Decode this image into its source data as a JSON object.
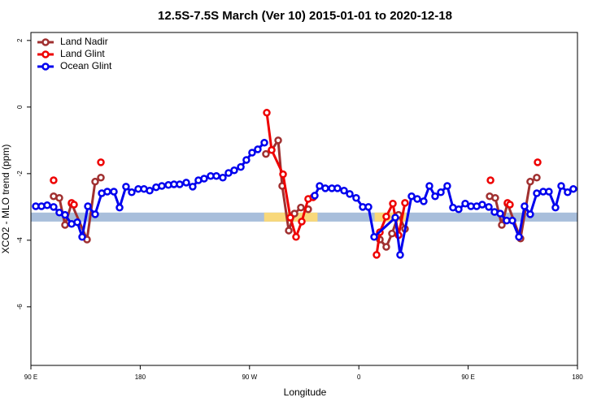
{
  "chart_data": {
    "type": "line",
    "title": "12.5S-7.5S March (Ver 10)   2015-01-01 to 2020-12-18",
    "x_label": "Longitude",
    "y_label": "XCO2 - MLO trend (ppm)",
    "xlim": [
      90,
      540
    ],
    "ylim": [
      -7.76,
      2.24
    ],
    "xticks": [
      {
        "value": 90,
        "label": "90 E"
      },
      180,
      {
        "value": 270,
        "label": "90 W"
      },
      {
        "value": 360,
        "label": "0"
      },
      {
        "value": 450,
        "label": "90 E"
      },
      {
        "value": 540,
        "label": "180"
      }
    ],
    "yticks": [
      -6,
      -4,
      -2,
      0,
      2
    ],
    "legend": "top-left",
    "band": {
      "range": [
        -3.44,
        -3.17
      ],
      "color": "#a8bedb",
      "land_color": "#f8d87a",
      "land_ranges": [
        [
          282,
          326
        ],
        [
          373,
          399
        ]
      ]
    },
    "series": [
      {
        "name": "Land Nadir",
        "color": "#a03030",
        "x": [
          108.7,
          113.4,
          118.1,
          123.5,
          136.2,
          142.9,
          147.6,
          null,
          283.5,
          288.2,
          293.6,
          296.9,
          302.3,
          307.0,
          312.3,
          318.3,
          null,
          377.3,
          382.6,
          387.3,
          392.7,
          398.0,
          null,
          467.7,
          472.3,
          477.7,
          482.4,
          493.1,
          501.1,
          506.5
        ],
        "values": [
          -2.68,
          -2.73,
          -3.54,
          -2.9,
          -3.98,
          -2.24,
          -2.12,
          null,
          -1.41,
          -1.29,
          -1.0,
          -2.37,
          -3.71,
          -3.2,
          -3.02,
          -3.07,
          null,
          -3.98,
          -4.2,
          -3.8,
          -3.24,
          -3.66,
          null,
          -2.68,
          -2.73,
          -3.54,
          -2.9,
          -3.95,
          -2.24,
          -2.12
        ]
      },
      {
        "name": "Land Glint",
        "color": "#ee0000",
        "x": [
          108.7,
          null,
          123.5,
          125.5,
          null,
          147.6,
          null,
          284.2,
          288.2,
          297.6,
          303.6,
          308.3,
          313.0,
          318.3,
          322.4,
          null,
          374.6,
          377.3,
          382.6,
          388.0,
          392.7,
          398.0,
          null,
          468.4,
          null,
          482.4,
          484.4,
          null,
          507.2
        ],
        "values": [
          -2.2,
          null,
          -2.88,
          -2.93,
          null,
          -1.66,
          null,
          -0.17,
          -1.29,
          -2.02,
          -3.32,
          -3.9,
          -3.44,
          -2.76,
          -2.71,
          null,
          -4.44,
          -3.76,
          -3.29,
          -2.9,
          -3.85,
          -2.88,
          null,
          -2.2,
          null,
          -2.88,
          -2.93,
          null,
          -1.66
        ]
      },
      {
        "name": "Ocean Glint",
        "color": "#0000ee",
        "x": [
          94.0,
          98.7,
          103.4,
          108.7,
          113.4,
          118.1,
          123.5,
          128.2,
          132.2,
          136.9,
          142.9,
          148.3,
          152.9,
          158.3,
          163.0,
          168.3,
          173.0,
          178.4,
          183.1,
          187.8,
          193.1,
          197.8,
          203.2,
          207.8,
          212.5,
          217.9,
          223.2,
          227.9,
          232.6,
          238.0,
          242.7,
          248.0,
          252.7,
          257.4,
          262.8,
          267.4,
          272.1,
          276.8,
          282.2,
          null,
          323.7,
          327.7,
          332.4,
          337.8,
          342.4,
          347.8,
          352.5,
          357.8,
          363.2,
          367.9,
          372.6,
          390.0,
          394.0,
          403.4,
          408.1,
          413.4,
          418.1,
          422.8,
          427.5,
          432.8,
          437.5,
          442.2,
          447.6,
          452.3,
          457.0,
          461.6,
          467.0,
          471.7,
          476.4,
          481.7,
          486.4,
          491.8,
          496.4,
          501.1,
          506.5,
          511.8,
          516.5,
          521.9,
          526.6,
          531.9,
          536.6
        ],
        "values": [
          -2.98,
          -2.98,
          -2.95,
          -3.0,
          -3.17,
          -3.24,
          -3.51,
          -3.46,
          -3.9,
          -2.98,
          -3.22,
          -2.59,
          -2.54,
          -2.54,
          -3.02,
          -2.39,
          -2.56,
          -2.46,
          -2.46,
          -2.51,
          -2.41,
          -2.37,
          -2.34,
          -2.32,
          -2.32,
          -2.27,
          -2.39,
          -2.2,
          -2.15,
          -2.07,
          -2.07,
          -2.12,
          -1.98,
          -1.9,
          -1.8,
          -1.59,
          -1.37,
          -1.27,
          -1.07,
          null,
          -2.66,
          -2.37,
          -2.44,
          -2.44,
          -2.44,
          -2.51,
          -2.61,
          -2.73,
          -3.0,
          -3.0,
          -3.9,
          -3.32,
          -4.44,
          -2.68,
          -2.76,
          -2.83,
          -2.37,
          -2.68,
          -2.56,
          -2.37,
          -3.02,
          -3.07,
          -2.9,
          -2.98,
          -2.98,
          -2.93,
          -3.0,
          -3.15,
          -3.2,
          -3.41,
          -3.41,
          -3.9,
          -2.98,
          -3.22,
          -2.59,
          -2.54,
          -2.54,
          -3.02,
          -2.37,
          -2.56,
          -2.46
        ]
      }
    ]
  }
}
